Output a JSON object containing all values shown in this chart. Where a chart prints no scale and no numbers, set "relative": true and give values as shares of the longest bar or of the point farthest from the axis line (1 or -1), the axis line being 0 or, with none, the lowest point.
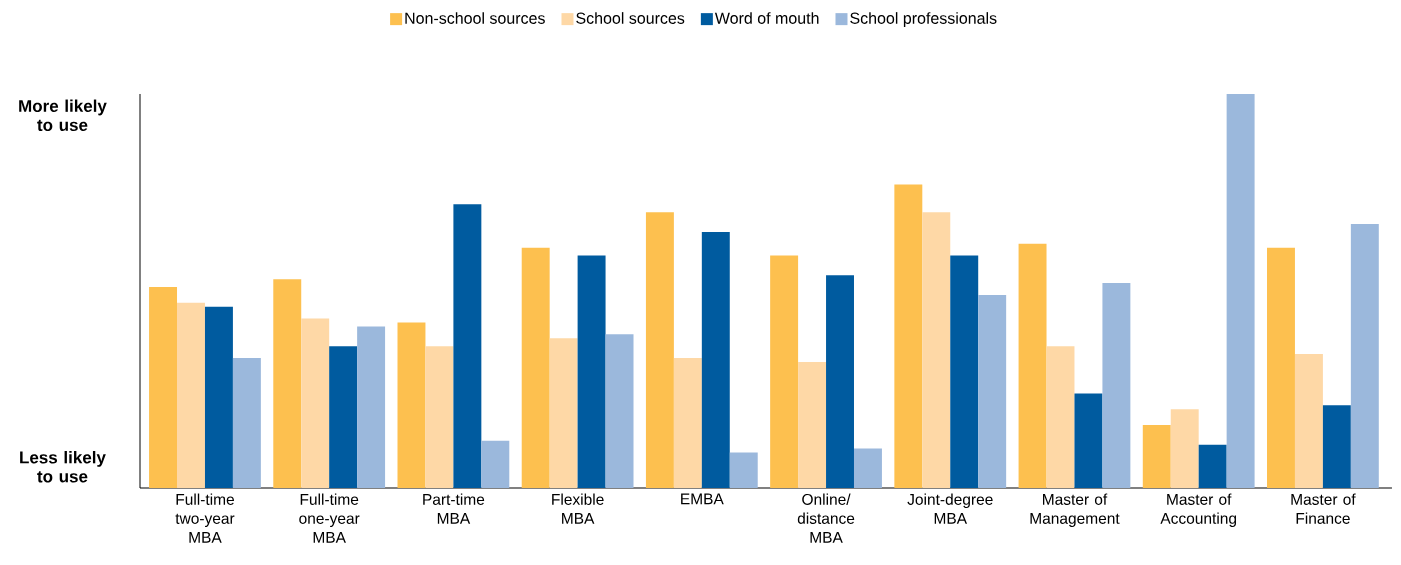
{
  "chart_data": {
    "type": "bar",
    "relative": true,
    "categories": [
      "Full-time two-year MBA",
      "Full-time one-year MBA",
      "Part-time MBA",
      "Flexible MBA",
      "EMBA",
      "Online/ distance MBA",
      "Joint-degree MBA",
      "Master of Management",
      "Master of Accounting",
      "Master of Finance"
    ],
    "series": [
      {
        "name": "Non-school sources",
        "color": "#fdc04f",
        "values": [
          0.51,
          0.53,
          0.42,
          0.61,
          0.7,
          0.59,
          0.77,
          0.62,
          0.16,
          0.61
        ]
      },
      {
        "name": "School sources",
        "color": "#fed8a6",
        "values": [
          0.47,
          0.43,
          0.36,
          0.38,
          0.33,
          0.32,
          0.7,
          0.36,
          0.2,
          0.34
        ]
      },
      {
        "name": "Word of mouth",
        "color": "#005b9f",
        "values": [
          0.46,
          0.36,
          0.72,
          0.59,
          0.65,
          0.54,
          0.59,
          0.24,
          0.11,
          0.21
        ]
      },
      {
        "name": "School professionals",
        "color": "#9bb8dc",
        "values": [
          0.33,
          0.41,
          0.12,
          0.39,
          0.09,
          0.1,
          0.49,
          0.52,
          1.0,
          0.67
        ]
      }
    ],
    "annotations": [
      "**More likely to use**",
      "**Less likely to use**"
    ],
    "legend": "top"
  }
}
